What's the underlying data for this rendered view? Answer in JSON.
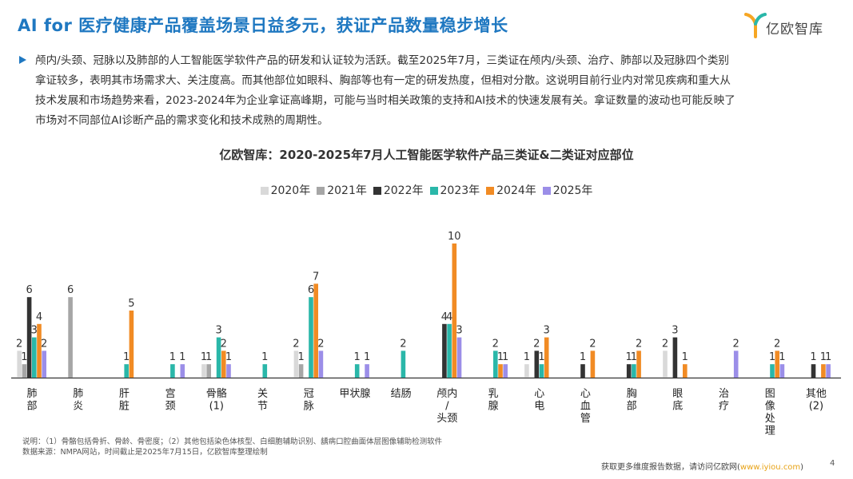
{
  "header": {
    "title": "AI for 医疗健康产品覆盖场景日益多元，获证产品数量稳步增长",
    "logo_text": "亿欧智库"
  },
  "summary": {
    "lines": [
      "颅内/头颈、冠脉以及肺部的人工智能医学软件产品的研发和认证较为活跃。截至2025年7月，三类证在颅内/头颈、治疗、肺部以及冠脉四个类别",
      "拿证较多，表明其市场需求大、关注度高。而其他部位如眼科、胸部等也有一定的研发热度，但相对分散。这说明目前行业内对常见疾病和重大从",
      "技术发展和市场趋势来看，2023-2024年为企业拿证高峰期，可能与当时相关政策的支持和AI技术的快速发展有关。拿证数量的波动也可能反映了",
      "市场对不同部位AI诊断产品的需求变化和技术成熟的周期性。"
    ]
  },
  "chart_data": {
    "type": "bar",
    "title": "亿欧智库：2020-2025年7月人工智能医学软件产品三类证&二类证对应部位",
    "xlabel": "",
    "ylabel": "",
    "ylim": [
      0,
      10
    ],
    "grid": false,
    "legend_position": "top",
    "categories": [
      "肺\n部",
      "肺\n炎",
      "肝\n脏",
      "宫\n颈",
      "骨骼\n(1)",
      "关\n节",
      "冠\n脉",
      "甲状腺",
      "结肠",
      "颅内\n/\n头颈",
      "乳\n腺",
      "心\n电",
      "心\n血\n管",
      "胸\n部",
      "眼\n底",
      "治\n疗",
      "图\n像\n处\n理",
      "其他\n(2)"
    ],
    "series": [
      {
        "name": "2020年",
        "color": "#d9d9d9",
        "values": [
          2,
          0,
          0,
          0,
          1,
          0,
          2,
          0,
          0,
          0,
          0,
          1,
          0,
          0,
          2,
          0,
          0,
          0
        ]
      },
      {
        "name": "2021年",
        "color": "#a6a6a6",
        "values": [
          1,
          6,
          0,
          0,
          1,
          0,
          1,
          0,
          0,
          0,
          0,
          0,
          0,
          0,
          0,
          0,
          0,
          0
        ]
      },
      {
        "name": "2022年",
        "color": "#333333",
        "values": [
          6,
          0,
          0,
          0,
          0,
          0,
          0,
          0,
          0,
          4,
          0,
          2,
          1,
          1,
          3,
          0,
          0,
          1
        ]
      },
      {
        "name": "2023年",
        "color": "#2ab7a9",
        "values": [
          3,
          0,
          1,
          1,
          3,
          1,
          6,
          1,
          2,
          4,
          2,
          1,
          0,
          1,
          0,
          0,
          1,
          0
        ]
      },
      {
        "name": "2024年",
        "color": "#f18b24",
        "values": [
          4,
          0,
          5,
          0,
          2,
          0,
          7,
          0,
          0,
          10,
          1,
          3,
          2,
          2,
          1,
          0,
          2,
          1
        ]
      },
      {
        "name": "2025年",
        "color": "#9b8ee8",
        "values": [
          2,
          0,
          0,
          1,
          1,
          0,
          2,
          1,
          0,
          3,
          1,
          0,
          0,
          0,
          0,
          2,
          1,
          1
        ]
      }
    ]
  },
  "notes": {
    "line1": "说明：（1）骨骼包括骨折、骨龄、骨密度；（2）其他包括染色体核型、白细胞辅助识别、龋病口腔曲面体层图像辅助检测软件",
    "line2": "数据来源：NMPA网站，时间截止是2025年7月15日，亿欧智库整理绘制"
  },
  "footer": {
    "text": "获取更多维度报告数据，请访问亿欧网(",
    "url": "www.iyiou.com",
    "close": ")",
    "page_number": "4"
  }
}
